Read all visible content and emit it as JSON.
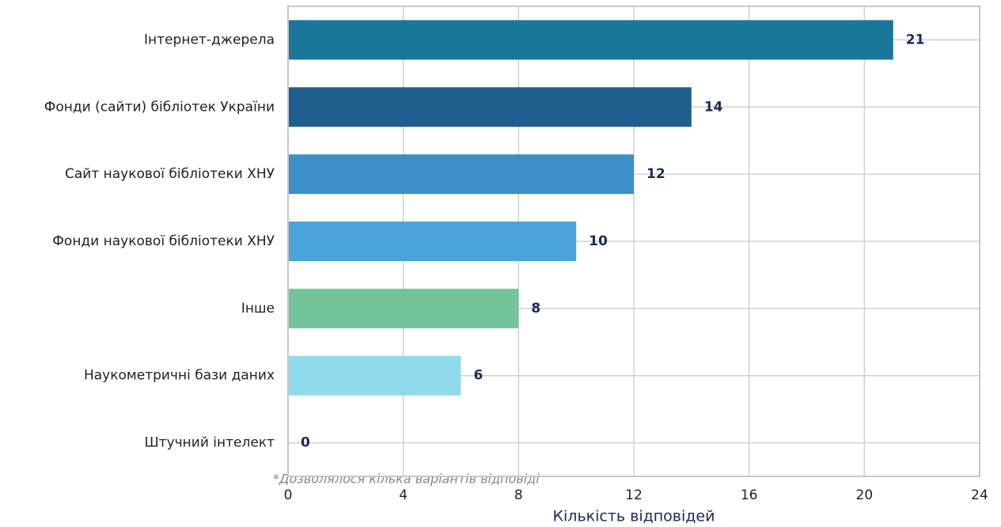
{
  "chart_data": {
    "type": "barh",
    "categories": [
      "Інтернет-джерела",
      "Фонди (сайти) бібліотек України",
      "Сайт наукової бібліотеки ХНУ",
      "Фонди наукової бібліотеки ХНУ",
      "Інше",
      "Наукометричні бази даних",
      "Штучний інтелект"
    ],
    "values": [
      21,
      14,
      12,
      10,
      8,
      6,
      0
    ],
    "colors": [
      "#1b769c",
      "#1f5f8f",
      "#3d90c7",
      "#4aa3db",
      "#74c49a",
      "#8fdbeb",
      "#2c7fb8"
    ],
    "xlabel": "Кількість відповідей",
    "annotation": "*Дозволялося кілька варіантів відповіді",
    "xlim": [
      0,
      24
    ],
    "xticks": [
      0,
      4,
      8,
      12,
      16,
      20,
      24
    ],
    "grid": true
  }
}
